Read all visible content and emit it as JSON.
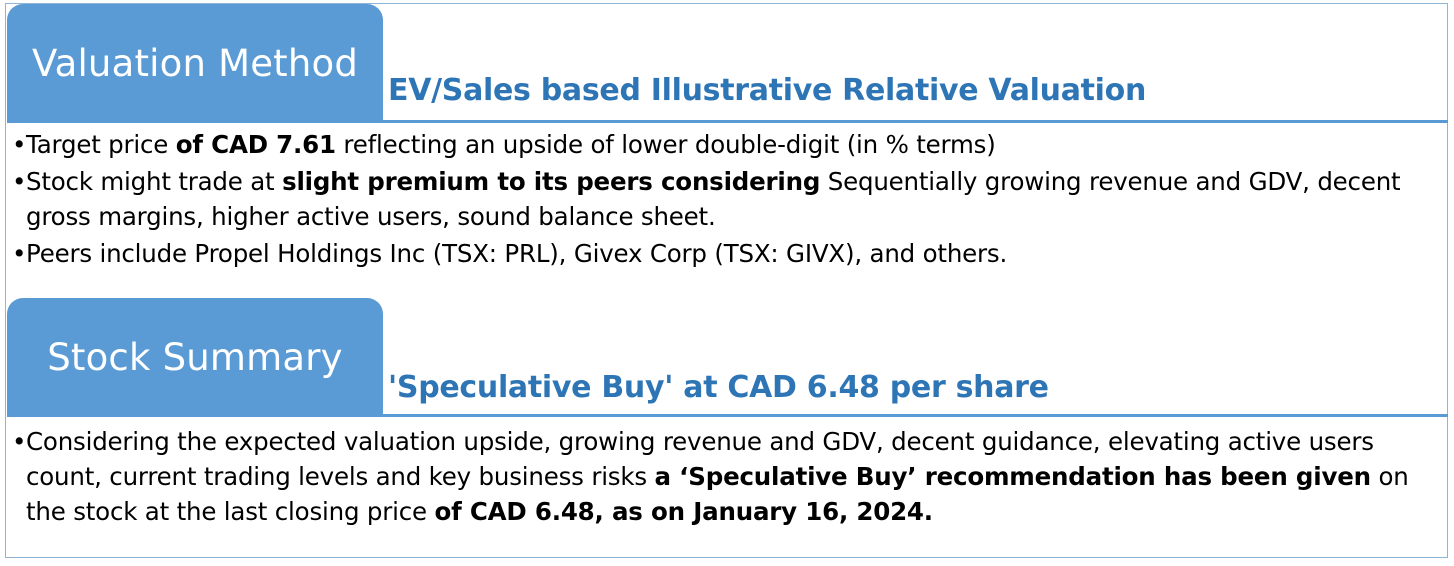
{
  "sections": [
    {
      "tab_title": "Valuation Method",
      "subtitle": "EV/Sales based Illustrative Relative Valuation",
      "bullets": [
        {
          "parts": [
            {
              "text": "Target price ",
              "bold": false
            },
            {
              "text": "of CAD 7.61",
              "bold": true
            },
            {
              "text": " reflecting an upside of lower double-digit (in % terms)",
              "bold": false
            }
          ]
        },
        {
          "parts": [
            {
              "text": "Stock might trade at ",
              "bold": false
            },
            {
              "text": "slight premium to its peers considering",
              "bold": true
            },
            {
              "text": " Sequentially growing revenue and GDV, decent gross margins, higher active users, sound balance sheet.",
              "bold": false
            }
          ]
        },
        {
          "parts": [
            {
              "text": "Peers include Propel Holdings Inc (TSX: PRL), Givex Corp (TSX: GIVX), and others.",
              "bold": false
            }
          ]
        }
      ]
    },
    {
      "tab_title": "Stock Summary",
      "subtitle": "'Speculative Buy' at CAD 6.48 per share",
      "bullets": [
        {
          "parts": [
            {
              "text": "Considering the expected valuation upside, growing revenue and GDV, decent guidance, elevating active users count, current trading levels and key business risks ",
              "bold": false
            },
            {
              "text": "a ‘Speculative Buy’ recommendation has been given",
              "bold": true
            },
            {
              "text": " on the stock at the last closing price ",
              "bold": false
            },
            {
              "text": "of CAD 6.48, as on January 16, 2024.",
              "bold": true
            }
          ]
        }
      ]
    }
  ],
  "colors": {
    "tab_background": "#5b9bd5",
    "subtitle_text": "#2e75b6",
    "rule": "#5b9bd5",
    "frame_border": "#8fb4d6"
  }
}
